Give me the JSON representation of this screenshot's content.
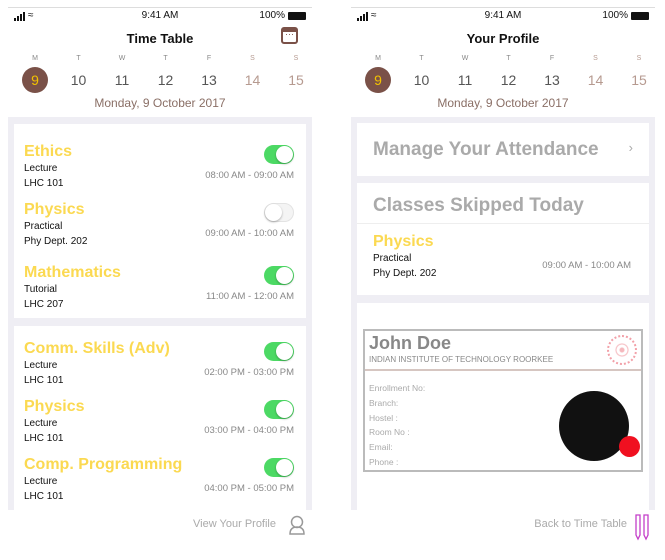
{
  "status": {
    "time": "9:41 AM",
    "battery": "100%"
  },
  "week": {
    "letters": [
      "M",
      "T",
      "W",
      "T",
      "F",
      "S",
      "S"
    ],
    "dates": [
      "9",
      "10",
      "11",
      "12",
      "13",
      "14",
      "15"
    ],
    "selected": 0,
    "date_label": "Monday, 9 October 2017"
  },
  "timetable": {
    "title": "Time Table",
    "cards": [
      [
        {
          "name": "Ethics",
          "type": "Lecture",
          "room": "LHC 101",
          "time": "08:00 AM - 09:00 AM",
          "attending": true
        },
        {
          "name": "Physics",
          "type": "Practical",
          "room": "Phy Dept. 202",
          "time": "09:00 AM - 10:00 AM",
          "attending": false
        },
        {
          "name": "Mathematics",
          "type": "Tutorial",
          "room": "LHC 207",
          "time": "11:00 AM - 12:00 AM",
          "attending": true
        }
      ],
      [
        {
          "name": "Comm. Skills (Adv)",
          "type": "Lecture",
          "room": "LHC 101",
          "time": "02:00 PM - 03:00 PM",
          "attending": true
        },
        {
          "name": "Physics",
          "type": "Lecture",
          "room": "LHC 101",
          "time": "03:00 PM - 04:00 PM",
          "attending": true
        },
        {
          "name": "Comp. Programming",
          "type": "Lecture",
          "room": "LHC 101",
          "time": "04:00 PM - 05:00 PM",
          "attending": true
        }
      ]
    ],
    "footer_link": "View Your Profile"
  },
  "profile": {
    "title": "Your Profile",
    "manage": "Manage Your Attendance",
    "skipped_title": "Classes Skipped Today",
    "skipped": {
      "name": "Physics",
      "type": "Practical",
      "room": "Phy Dept. 202",
      "time": "09:00 AM - 10:00 AM"
    },
    "id": {
      "name": "John Doe",
      "institute": "INDIAN INSTITUTE OF TECHNOLOGY ROORKEE",
      "fields": [
        "Enrollment No:",
        "Branch:",
        "Hostel :",
        "Room No :",
        "Email:",
        "Phone :"
      ]
    },
    "footer_link": "Back to Time Table"
  },
  "colors": {
    "accent": "#7a5148",
    "course": "#fbd951",
    "toggle_on": "#4cd964",
    "status_dot": "#f01020"
  }
}
